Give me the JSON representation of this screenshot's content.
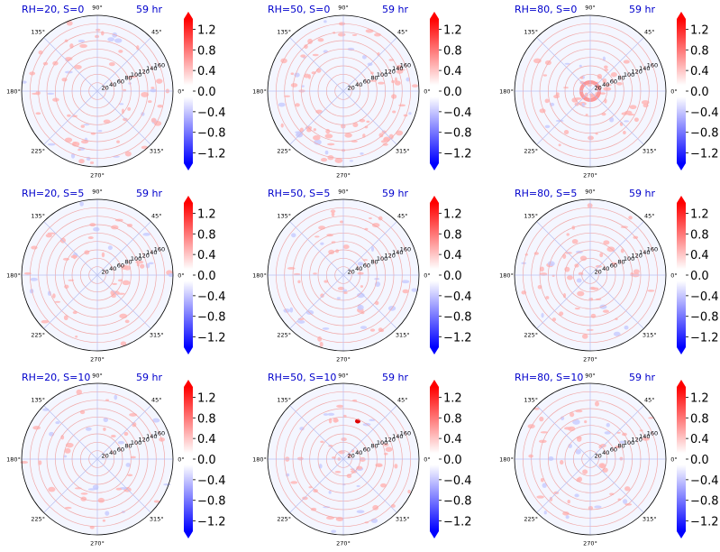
{
  "colors": {
    "title": "#0000cc",
    "positive": "#ff0000",
    "negative": "#0000ff",
    "grid": "#f0a8a8",
    "spoke": "#b8bff0",
    "frame": "#000000",
    "background": "#ffffff"
  },
  "chart_data": [
    {
      "type": "heatmap",
      "projection": "polar",
      "title": "RH=20, S=0",
      "time_label": "59 hr",
      "r_ticks": [
        "20",
        "40",
        "60",
        "80",
        "100",
        "120",
        "140",
        "160"
      ],
      "rlim": [
        0,
        180
      ],
      "theta_ticks": [
        "0°",
        "45°",
        "90°",
        "135°",
        "180°",
        "225°",
        "270°",
        "315°"
      ],
      "colorbar_ticks": [
        "1.2",
        "0.8",
        "0.4",
        "0.0",
        "−0.4",
        "−0.8",
        "−1.2"
      ],
      "colorbar_range": [
        -1.4,
        1.4
      ],
      "grid": true
    },
    {
      "type": "heatmap",
      "projection": "polar",
      "title": "RH=50, S=0",
      "time_label": "59 hr",
      "r_ticks": [
        "20",
        "40",
        "60",
        "80",
        "100",
        "120",
        "140",
        "160"
      ],
      "rlim": [
        0,
        180
      ],
      "theta_ticks": [
        "0°",
        "45°",
        "90°",
        "135°",
        "180°",
        "225°",
        "270°",
        "315°"
      ],
      "colorbar_ticks": [
        "1.2",
        "0.8",
        "0.4",
        "0.0",
        "−0.4",
        "−0.8",
        "−1.2"
      ],
      "colorbar_range": [
        -1.4,
        1.4
      ],
      "grid": true
    },
    {
      "type": "heatmap",
      "projection": "polar",
      "title": "RH=80, S=0",
      "time_label": "59 hr",
      "r_ticks": [
        "20",
        "40",
        "60",
        "80",
        "100",
        "120",
        "140",
        "160"
      ],
      "rlim": [
        0,
        180
      ],
      "theta_ticks": [
        "0°",
        "45°",
        "90°",
        "135°",
        "180°",
        "225°",
        "270°",
        "315°"
      ],
      "colorbar_ticks": [
        "1.2",
        "0.8",
        "0.4",
        "0.0",
        "−0.4",
        "−0.8",
        "−1.2"
      ],
      "colorbar_range": [
        -1.4,
        1.4
      ],
      "grid": true
    },
    {
      "type": "heatmap",
      "projection": "polar",
      "title": "RH=20, S=5",
      "time_label": "59 hr",
      "r_ticks": [
        "20",
        "40",
        "60",
        "80",
        "100",
        "120",
        "140",
        "160"
      ],
      "rlim": [
        0,
        180
      ],
      "theta_ticks": [
        "0°",
        "45°",
        "90°",
        "135°",
        "180°",
        "225°",
        "270°",
        "315°"
      ],
      "colorbar_ticks": [
        "1.2",
        "0.8",
        "0.4",
        "0.0",
        "−0.4",
        "−0.8",
        "−1.2"
      ],
      "colorbar_range": [
        -1.4,
        1.4
      ],
      "grid": true
    },
    {
      "type": "heatmap",
      "projection": "polar",
      "title": "RH=50, S=5",
      "time_label": "59 hr",
      "r_ticks": [
        "20",
        "40",
        "60",
        "80",
        "100",
        "120",
        "140",
        "160"
      ],
      "rlim": [
        0,
        180
      ],
      "theta_ticks": [
        "0°",
        "45°",
        "90°",
        "135°",
        "180°",
        "225°",
        "270°",
        "315°"
      ],
      "colorbar_ticks": [
        "1.2",
        "0.8",
        "0.4",
        "0.0",
        "−0.4",
        "−0.8",
        "−1.2"
      ],
      "colorbar_range": [
        -1.4,
        1.4
      ],
      "grid": true
    },
    {
      "type": "heatmap",
      "projection": "polar",
      "title": "RH=80, S=5",
      "time_label": "59 hr",
      "r_ticks": [
        "20",
        "40",
        "60",
        "80",
        "100",
        "120",
        "140",
        "160"
      ],
      "rlim": [
        0,
        180
      ],
      "theta_ticks": [
        "0°",
        "45°",
        "90°",
        "135°",
        "180°",
        "225°",
        "270°",
        "315°"
      ],
      "colorbar_ticks": [
        "1.2",
        "0.8",
        "0.4",
        "0.0",
        "−0.4",
        "−0.8",
        "−1.2"
      ],
      "colorbar_range": [
        -1.4,
        1.4
      ],
      "grid": true
    },
    {
      "type": "heatmap",
      "projection": "polar",
      "title": "RH=20, S=10",
      "time_label": "59 hr",
      "r_ticks": [
        "20",
        "40",
        "60",
        "80",
        "100",
        "120",
        "140",
        "160"
      ],
      "rlim": [
        0,
        180
      ],
      "theta_ticks": [
        "0°",
        "45°",
        "90°",
        "135°",
        "180°",
        "225°",
        "270°",
        "315°"
      ],
      "colorbar_ticks": [
        "1.2",
        "0.8",
        "0.4",
        "0.0",
        "−0.4",
        "−0.8",
        "−1.2"
      ],
      "colorbar_range": [
        -1.4,
        1.4
      ],
      "grid": true
    },
    {
      "type": "heatmap",
      "projection": "polar",
      "title": "RH=50, S=10",
      "time_label": "59 hr",
      "r_ticks": [
        "20",
        "40",
        "60",
        "80",
        "100",
        "120",
        "140",
        "160"
      ],
      "rlim": [
        0,
        180
      ],
      "theta_ticks": [
        "0°",
        "45°",
        "90°",
        "135°",
        "180°",
        "225°",
        "270°",
        "315°"
      ],
      "colorbar_ticks": [
        "1.2",
        "0.8",
        "0.4",
        "0.0",
        "−0.4",
        "−0.8",
        "−1.2"
      ],
      "colorbar_range": [
        -1.4,
        1.4
      ],
      "grid": true
    },
    {
      "type": "heatmap",
      "projection": "polar",
      "title": "RH=80, S=10",
      "time_label": "59 hr",
      "r_ticks": [
        "20",
        "40",
        "60",
        "80",
        "100",
        "120",
        "140",
        "160"
      ],
      "rlim": [
        0,
        180
      ],
      "theta_ticks": [
        "0°",
        "45°",
        "90°",
        "135°",
        "180°",
        "225°",
        "270°",
        "315°"
      ],
      "colorbar_ticks": [
        "1.2",
        "0.8",
        "0.4",
        "0.0",
        "−0.4",
        "−0.8",
        "−1.2"
      ],
      "colorbar_range": [
        -1.4,
        1.4
      ],
      "grid": true
    }
  ]
}
